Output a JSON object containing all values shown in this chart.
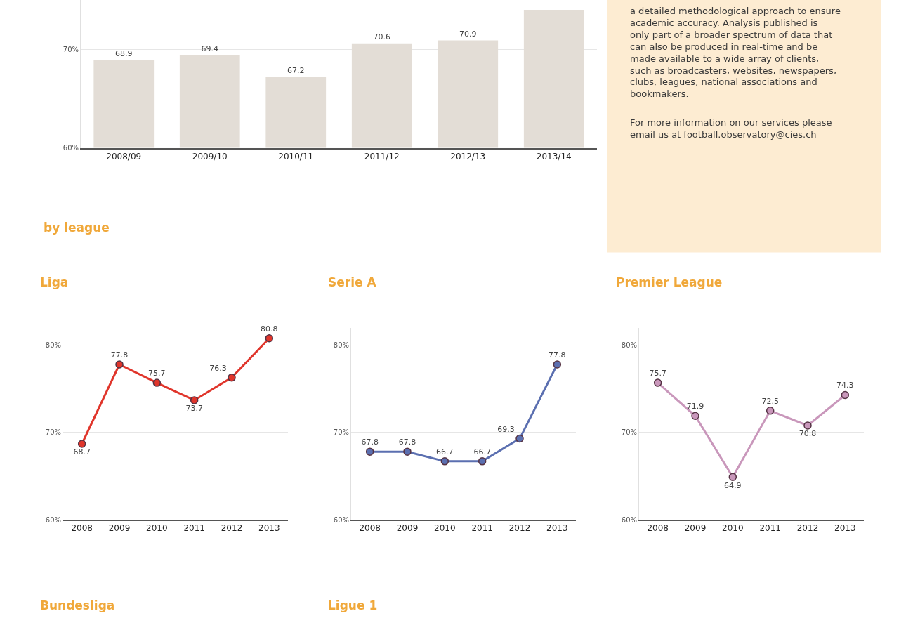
{
  "chart_data": [
    {
      "type": "bar",
      "categories": [
        "2008/09",
        "2009/10",
        "2010/11",
        "2011/12",
        "2012/13",
        "2013/14"
      ],
      "values": [
        68.9,
        69.4,
        67.2,
        70.6,
        70.9,
        74.0
      ],
      "value_labels": [
        "68.9",
        "69.4",
        "67.2",
        "70.6",
        "70.9",
        null
      ],
      "color": "#e3ddd6",
      "ylim": [
        60,
        75
      ],
      "yticks": [
        {
          "value": 60,
          "label": "60%"
        },
        {
          "value": 70,
          "label": "70%"
        }
      ],
      "grid": "y"
    },
    {
      "type": "other",
      "annotations": [
        "a detailed methodological approach to ensure academic accuracy. Analysis published is only part of a broader spectrum of data that can also be produced in real-time and be made available to a wide array of clients, such as broadcasters, websites, newspapers, clubs, leagues, national associations and bookmakers.",
        "For more information on our services please email us at football.observatory@cies.ch"
      ]
    },
    {
      "type": "line",
      "title": "Liga",
      "categories": [
        "2008",
        "2009",
        "2010",
        "2011",
        "2012",
        "2013"
      ],
      "series": [
        {
          "color": "#e0352b",
          "values": [
            68.7,
            77.8,
            75.7,
            73.7,
            76.3,
            80.8
          ]
        }
      ],
      "ylim": [
        60,
        82
      ],
      "yticks": [
        {
          "value": 60,
          "label": "60%"
        },
        {
          "value": 70,
          "label": "70%"
        },
        {
          "value": 80,
          "label": "80%"
        }
      ],
      "grid": "y",
      "marker": "circle",
      "data_labels": true
    },
    {
      "type": "line",
      "title": "Serie A",
      "categories": [
        "2008",
        "2009",
        "2010",
        "2011",
        "2012",
        "2013"
      ],
      "series": [
        {
          "color": "#5b6fb0",
          "values": [
            67.8,
            67.8,
            66.7,
            66.7,
            69.3,
            77.8
          ]
        }
      ],
      "ylim": [
        60,
        82
      ],
      "yticks": [
        {
          "value": 60,
          "label": "60%"
        },
        {
          "value": 70,
          "label": "70%"
        },
        {
          "value": 80,
          "label": "80%"
        }
      ],
      "grid": "y",
      "marker": "circle",
      "data_labels": true
    },
    {
      "type": "line",
      "title": "Premier League",
      "categories": [
        "2008",
        "2009",
        "2010",
        "2011",
        "2012",
        "2013"
      ],
      "series": [
        {
          "color": "#c997bb",
          "values": [
            75.7,
            71.9,
            64.9,
            72.5,
            70.8,
            74.3
          ]
        }
      ],
      "ylim": [
        60,
        82
      ],
      "yticks": [
        {
          "value": 60,
          "label": "60%"
        },
        {
          "value": 70,
          "label": "70%"
        },
        {
          "value": 80,
          "label": "80%"
        }
      ],
      "grid": "y",
      "marker": "circle",
      "data_labels": true
    },
    {
      "type": "other",
      "annotations": [
        "by league",
        "Bundesliga",
        "Ligue 1"
      ]
    }
  ]
}
